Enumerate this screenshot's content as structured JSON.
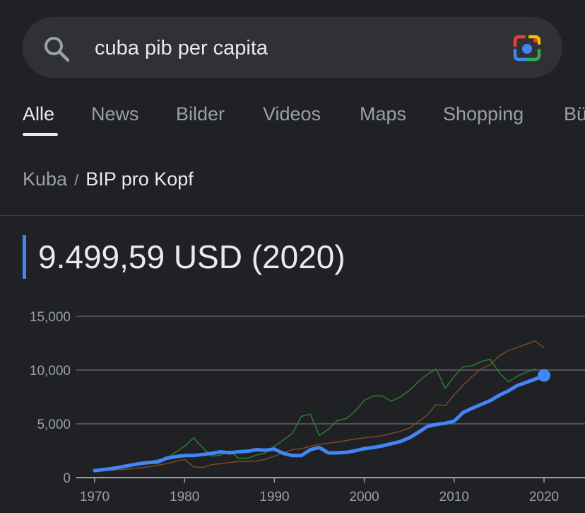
{
  "search": {
    "query": "cuba pib per capita",
    "icon": "search-icon",
    "lens_icon": "google-lens-icon"
  },
  "tabs": [
    {
      "label": "Alle",
      "active": true
    },
    {
      "label": "News",
      "active": false
    },
    {
      "label": "Bilder",
      "active": false
    },
    {
      "label": "Videos",
      "active": false
    },
    {
      "label": "Maps",
      "active": false
    },
    {
      "label": "Shopping",
      "active": false
    },
    {
      "label": "Bü",
      "active": false
    }
  ],
  "breadcrumb": {
    "parent": "Kuba",
    "separator": "/",
    "current": "BIP pro Kopf"
  },
  "headline": {
    "value": "9.499,59 USD (2020)",
    "accent_color": "#4285f4"
  },
  "chart_data": {
    "type": "line",
    "title": "",
    "xlabel": "",
    "ylabel": "",
    "x_ticks": [
      "1970",
      "1980",
      "1990",
      "2000",
      "2010",
      "2020"
    ],
    "y_ticks": [
      "0",
      "5,000",
      "10,000",
      "15,000"
    ],
    "xlim": [
      1970,
      2020
    ],
    "ylim": [
      0,
      15000
    ],
    "grid": true,
    "series": [
      {
        "color": "#4285f4",
        "highlight": true,
        "x": [
          1970,
          1971,
          1972,
          1973,
          1974,
          1975,
          1976,
          1977,
          1978,
          1979,
          1980,
          1981,
          1982,
          1983,
          1984,
          1985,
          1986,
          1987,
          1988,
          1989,
          1990,
          1991,
          1992,
          1993,
          1994,
          1995,
          1996,
          1997,
          1998,
          1999,
          2000,
          2001,
          2002,
          2003,
          2004,
          2005,
          2006,
          2007,
          2008,
          2009,
          2010,
          2011,
          2012,
          2013,
          2014,
          2015,
          2016,
          2017,
          2018,
          2019,
          2020
        ],
        "values": [
          650,
          750,
          850,
          1000,
          1150,
          1300,
          1400,
          1450,
          1800,
          1950,
          2050,
          2050,
          2150,
          2250,
          2400,
          2300,
          2400,
          2450,
          2600,
          2550,
          2650,
          2250,
          2050,
          2050,
          2600,
          2800,
          2300,
          2300,
          2350,
          2500,
          2700,
          2800,
          2950,
          3150,
          3350,
          3700,
          4200,
          4750,
          4950,
          5050,
          5250,
          6050,
          6450,
          6800,
          7150,
          7650,
          8050,
          8550,
          8850,
          9150,
          9500
        ]
      },
      {
        "color": "#2e7d32",
        "highlight": false,
        "x": [
          1970,
          1972,
          1974,
          1976,
          1978,
          1980,
          1981,
          1982,
          1983,
          1984,
          1985,
          1986,
          1987,
          1988,
          1989,
          1990,
          1991,
          1992,
          1993,
          1994,
          1995,
          1996,
          1997,
          1998,
          1999,
          2000,
          2001,
          2002,
          2003,
          2004,
          2005,
          2006,
          2007,
          2008,
          2009,
          2010,
          2011,
          2012,
          2013,
          2014,
          2015,
          2016,
          2017,
          2018,
          2019
        ],
        "values": [
          700,
          900,
          1200,
          1500,
          1800,
          2900,
          3700,
          2800,
          2000,
          2100,
          2500,
          1800,
          1800,
          2100,
          2300,
          2900,
          3500,
          4100,
          5700,
          5900,
          3900,
          4500,
          5300,
          5500,
          6200,
          7200,
          7600,
          7600,
          7100,
          7500,
          8100,
          8900,
          9600,
          10100,
          8300,
          9400,
          10300,
          10400,
          10800,
          11000,
          9800,
          8900,
          9400,
          9800,
          10100
        ]
      },
      {
        "color": "#7a4a1e",
        "highlight": false,
        "x": [
          1970,
          1972,
          1974,
          1976,
          1978,
          1980,
          1981,
          1982,
          1983,
          1984,
          1985,
          1986,
          1987,
          1988,
          1989,
          1990,
          1991,
          1992,
          1993,
          1994,
          1995,
          1996,
          1997,
          1998,
          1999,
          2000,
          2001,
          2002,
          2003,
          2004,
          2005,
          2006,
          2007,
          2008,
          2009,
          2010,
          2011,
          2012,
          2013,
          2014,
          2015,
          2016,
          2017,
          2018,
          2019,
          2020
        ],
        "values": [
          600,
          700,
          800,
          1000,
          1300,
          1700,
          1000,
          950,
          1200,
          1300,
          1400,
          1500,
          1500,
          1550,
          1700,
          2000,
          2300,
          2600,
          2700,
          2900,
          3100,
          3200,
          3300,
          3450,
          3600,
          3700,
          3800,
          3900,
          4100,
          4300,
          4600,
          5200,
          5800,
          6800,
          6700,
          7700,
          8600,
          9400,
          10100,
          10500,
          11300,
          11800,
          12100,
          12400,
          12700,
          12100
        ]
      }
    ]
  }
}
